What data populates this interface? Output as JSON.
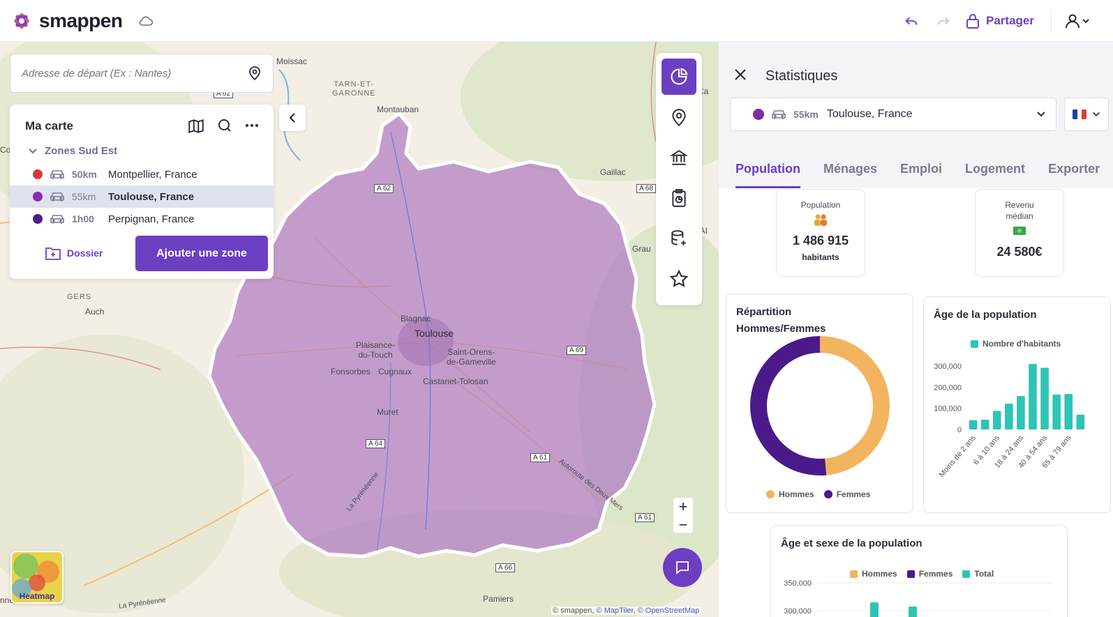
{
  "app": {
    "name": "smappen",
    "share_label": "Partager"
  },
  "search": {
    "placeholder": "Adresse de départ (Ex : Nantes)"
  },
  "my_map": {
    "title": "Ma carte",
    "group": "Zones Sud Est",
    "zones": [
      {
        "color": "#d83a3a",
        "distance": "50km",
        "name": "Montpellier, France",
        "selected": false
      },
      {
        "color": "#8e2ab0",
        "distance": "55km",
        "name": "Toulouse, France",
        "selected": true
      },
      {
        "color": "#4b1d8c",
        "distance": "1h00",
        "name": "Perpignan, France",
        "selected": false
      }
    ],
    "folder_label": "Dossier",
    "add_zone_label": "Ajouter une zone"
  },
  "map": {
    "labels": {
      "moissac": "Moissac",
      "montauban": "Montauban",
      "tarn": "TARN-ET-\nGARONNE",
      "gaillac": "Gaillac",
      "grau": "Grau",
      "gers": "GERS",
      "auch": "Auch",
      "blagnac": "Blagnac",
      "toulouse": "Toulouse",
      "plaisance": "Plaisance-\ndu-Touch",
      "saint_orens": "Saint-Orens-\nde-Gameville",
      "fonsorbes": "Fonsorbes",
      "cugnaux": "Cugnaux",
      "castanet": "Castanet-Tolosan",
      "muret": "Muret",
      "pamiers": "Pamiers",
      "lannemezan": "nnemezan",
      "la_pyreneenne_1": "La Pyrénéenne",
      "la_pyreneenne_2": "La Pyrénéenne",
      "autoroute": "Autoroute des Deux Mers",
      "ca": "Ca",
      "tai": "TAI",
      "cor": "Cor"
    },
    "roads": [
      "A 62",
      "A 62",
      "A 68",
      "A 69",
      "A 64",
      "A 61",
      "A 61",
      "A 66"
    ],
    "heatmap_label": "Heatmap",
    "attribution": "© smappen, ",
    "attribution_link1": "© MapTiler",
    "attribution_sep": ", ",
    "attribution_link2": "© OpenStreetMap"
  },
  "stats": {
    "title": "Statistiques",
    "zone_distance": "55km",
    "zone_name": "Toulouse, France",
    "tabs": [
      "Population",
      "Ménages",
      "Emploi",
      "Logement",
      "Exporter"
    ],
    "kpi_population": {
      "label": "Population",
      "value": "1 486 915",
      "unit": "habitants"
    },
    "kpi_income": {
      "label": "Revenu médian",
      "value": "24 580€"
    },
    "gender_title": "Répartition Hommes/Femmes",
    "age_title": "Âge de la population",
    "age_sex_title": "Âge et sexe de la population"
  },
  "chart_data": [
    {
      "type": "pie",
      "title": "Répartition Hommes/Femmes",
      "labels": [
        "Hommes",
        "Femmes"
      ],
      "values": [
        48.5,
        51.5
      ],
      "colors": [
        "#f2b45e",
        "#4a1a8a"
      ],
      "legend": "bottom"
    },
    {
      "type": "bar",
      "title": "Âge de la population",
      "series": [
        {
          "name": "Nombre d'habitants",
          "color": "#2ec4b6"
        }
      ],
      "categories": [
        "Moins de 2 ans",
        "",
        "6 à 10 ans",
        "",
        "18 à 24 ans",
        "",
        "40 à 54 ans",
        "",
        "65 à 79 ans",
        "",
        ""
      ],
      "values": [
        44000,
        46000,
        88000,
        122000,
        158000,
        310000,
        292000,
        165000,
        168000,
        70000,
        0
      ],
      "yticks": [
        "0",
        "100,000",
        "200,000",
        "300,000"
      ],
      "ylim": [
        0,
        330000
      ],
      "legend": "top"
    },
    {
      "type": "bar",
      "title": "Âge et sexe de la population",
      "series": [
        {
          "name": "Hommes",
          "color": "#f2b45e"
        },
        {
          "name": "Femmes",
          "color": "#4a1a8a"
        },
        {
          "name": "Total",
          "color": "#2ec4b6"
        }
      ],
      "yticks": [
        "350,000",
        "300,000"
      ],
      "legend": "top"
    }
  ]
}
